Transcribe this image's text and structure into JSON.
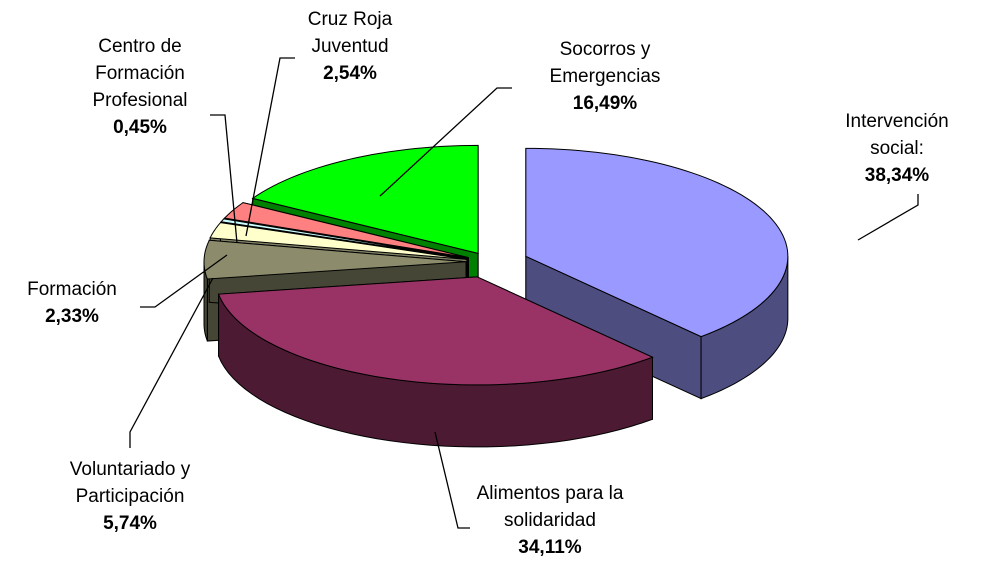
{
  "chart_data": {
    "type": "pie",
    "categories": [
      "Intervención social:",
      "Alimentos para la solidaridad",
      "Voluntariado y Participación",
      "Formación",
      "Centro de Formación Profesional",
      "Cruz Roja Juventud",
      "Socorros y Emergencias"
    ],
    "values": [
      38.34,
      34.11,
      5.74,
      2.33,
      0.45,
      2.54,
      16.49
    ],
    "value_labels": [
      "38,34%",
      "34,11%",
      "5,74%",
      "2,33%",
      "0,45%",
      "2,54%",
      "16,49%"
    ],
    "colors": [
      "#9999ff",
      "#993366",
      "#8c8c6c",
      "#ffffcc",
      "#ccffff",
      "#ff8080",
      "#00ff00"
    ]
  }
}
